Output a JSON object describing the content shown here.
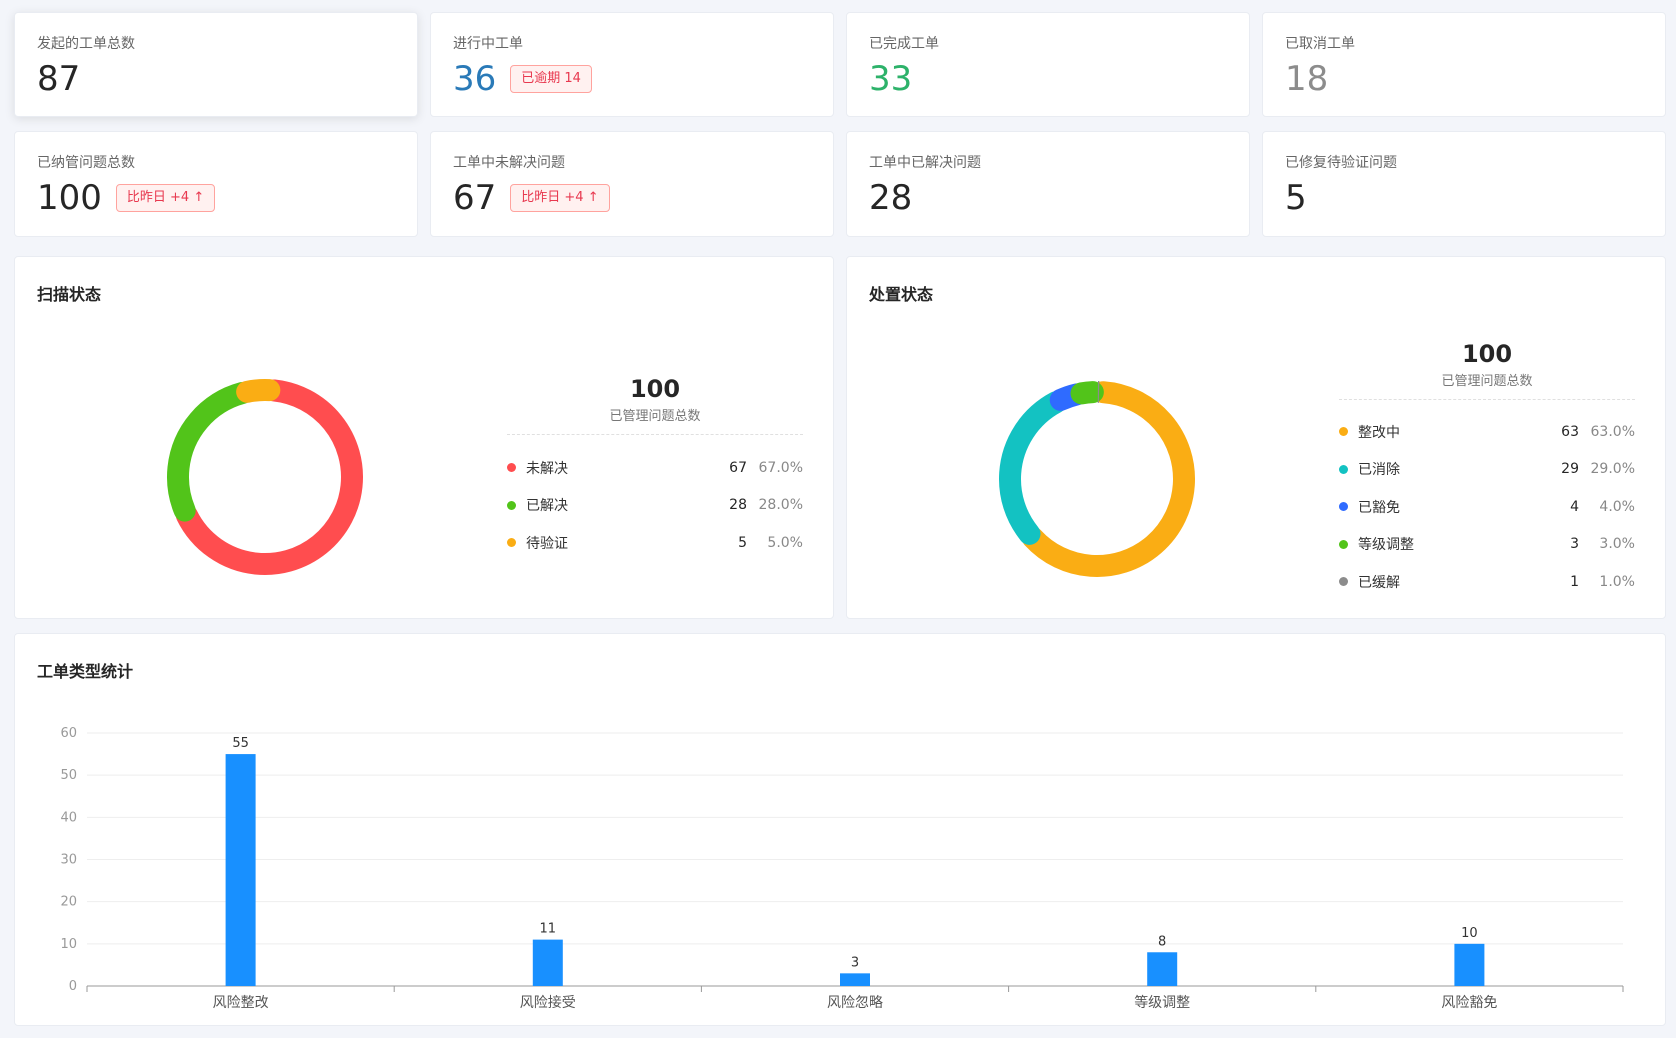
{
  "stats_row1": [
    {
      "label": "发起的工单总数",
      "value": "87",
      "color": "#262626",
      "badge": ""
    },
    {
      "label": "进行中工单",
      "value": "36",
      "color": "#2a7ab8",
      "badge": "已逾期 14"
    },
    {
      "label": "已完成工单",
      "value": "33",
      "color": "#2db26a",
      "badge": ""
    },
    {
      "label": "已取消工单",
      "value": "18",
      "color": "#8c8c8c",
      "badge": ""
    }
  ],
  "stats_row2": [
    {
      "label": "已纳管问题总数",
      "value": "100",
      "color": "#262626",
      "badge": "比昨日 +4 ↑"
    },
    {
      "label": "工单中未解决问题",
      "value": "67",
      "color": "#262626",
      "badge": "比昨日 +4 ↑"
    },
    {
      "label": "工单中已解决问题",
      "value": "28",
      "color": "#262626",
      "badge": ""
    },
    {
      "label": "已修复待验证问题",
      "value": "5",
      "color": "#262626",
      "badge": ""
    }
  ],
  "scan_status": {
    "title": "扫描状态",
    "total": "100",
    "total_label": "已管理问题总数",
    "items": [
      {
        "name": "未解决",
        "count": "67",
        "pct": "67.0%",
        "value": 67,
        "color": "#ff4d4f"
      },
      {
        "name": "已解决",
        "count": "28",
        "pct": "28.0%",
        "value": 28,
        "color": "#52c41a"
      },
      {
        "name": "待验证",
        "count": "5",
        "pct": "5.0%",
        "value": 5,
        "color": "#faad14"
      }
    ]
  },
  "handle_status": {
    "title": "处置状态",
    "total": "100",
    "total_label": "已管理问题总数",
    "items": [
      {
        "name": "整改中",
        "count": "63",
        "pct": "63.0%",
        "value": 63,
        "color": "#faad14"
      },
      {
        "name": "已消除",
        "count": "29",
        "pct": "29.0%",
        "value": 29,
        "color": "#13c2c2"
      },
      {
        "name": "已豁免",
        "count": "4",
        "pct": "4.0%",
        "value": 4,
        "color": "#2f6bff"
      },
      {
        "name": "等级调整",
        "count": "3",
        "pct": "3.0%",
        "value": 3,
        "color": "#52c41a"
      },
      {
        "name": "已缓解",
        "count": "1",
        "pct": "1.0%",
        "value": 1,
        "color": "#8c8c8c"
      }
    ]
  },
  "type_stats": {
    "title": "工单类型统计"
  },
  "chart_data": {
    "type": "bar",
    "categories": [
      "风险整改",
      "风险接受",
      "风险忽略",
      "等级调整",
      "风险豁免"
    ],
    "values": [
      55,
      11,
      3,
      8,
      10
    ],
    "value_labels": [
      "55",
      "11",
      "3",
      "8",
      "10"
    ],
    "ylim": [
      0,
      60
    ],
    "yticks": [
      0,
      10,
      20,
      30,
      40,
      50,
      60
    ],
    "ytick_labels": [
      "0",
      "10",
      "20",
      "30",
      "40",
      "50",
      "60"
    ],
    "grid": true,
    "bar_color": "#1890ff"
  }
}
